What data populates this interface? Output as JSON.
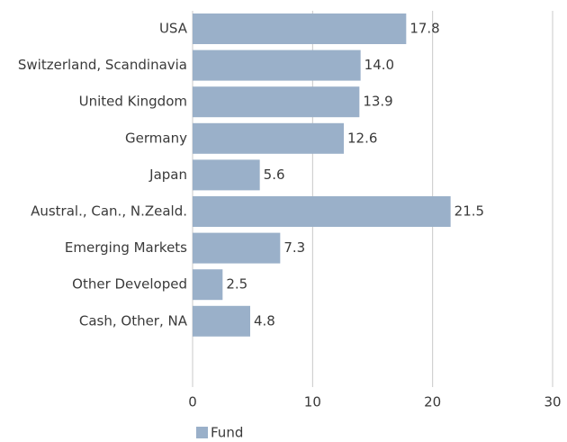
{
  "chart_data": {
    "type": "hbar",
    "categories": [
      "USA",
      "Switzerland, Scandinavia",
      "United Kingdom",
      "Germany",
      "Japan",
      "Austral., Can., N.Zeald.",
      "Emerging Markets",
      "Other Developed",
      "Cash, Other, NA"
    ],
    "series": [
      {
        "name": "Fund",
        "color": "#9ab0c9",
        "values": [
          17.8,
          14.0,
          13.9,
          12.6,
          5.6,
          21.5,
          7.3,
          2.5,
          4.8
        ],
        "value_labels": [
          "17.8",
          "14.0",
          "13.9",
          "12.6",
          "5.6",
          "21.5",
          "7.3",
          "2.5",
          "4.8"
        ]
      }
    ],
    "xlim": [
      0,
      30
    ],
    "xticks": [
      0,
      10,
      20,
      30
    ],
    "grid": true,
    "legend": "bottom-left"
  }
}
